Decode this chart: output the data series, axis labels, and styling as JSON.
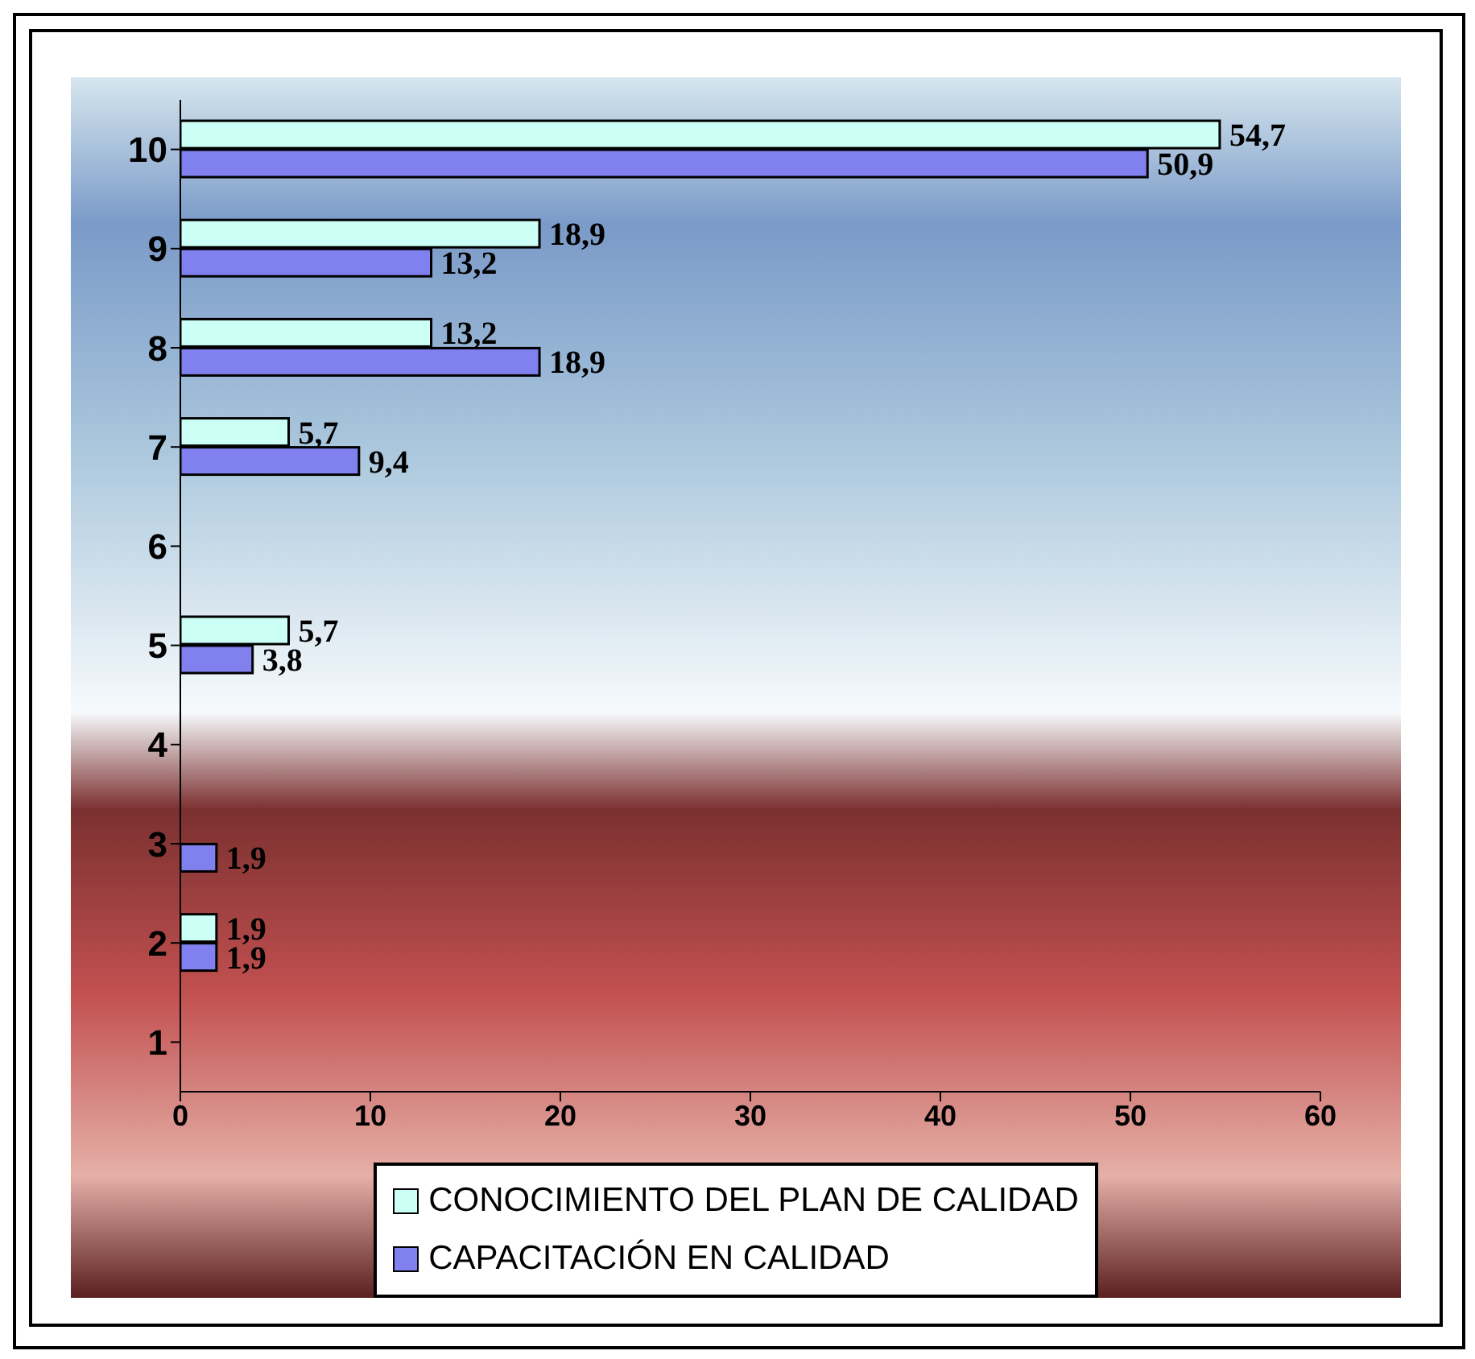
{
  "chart_data": {
    "type": "bar",
    "orientation": "horizontal",
    "categories": [
      "10",
      "9",
      "8",
      "7",
      "6",
      "5",
      "4",
      "3",
      "2",
      "1"
    ],
    "series": [
      {
        "name": "CONOCIMIENTO DEL PLAN DE CALIDAD",
        "color": "#ccfff5",
        "values": [
          54.7,
          18.9,
          13.2,
          5.7,
          null,
          5.7,
          null,
          null,
          1.9,
          null
        ],
        "value_labels": [
          "54,7",
          "18,9",
          "13,2",
          "5,7",
          null,
          "5,7",
          null,
          null,
          "1,9",
          null
        ]
      },
      {
        "name": "CAPACITACIÓN EN CALIDAD",
        "color": "#8080ee",
        "values": [
          50.9,
          13.2,
          18.9,
          9.4,
          null,
          3.8,
          null,
          1.9,
          1.9,
          null
        ],
        "value_labels": [
          "50,9",
          "13,2",
          "18,9",
          "9,4",
          null,
          "3,8",
          null,
          "1,9",
          "1,9",
          null
        ]
      }
    ],
    "xlim": [
      0,
      60
    ],
    "xticks": [
      0,
      10,
      20,
      30,
      40,
      50,
      60
    ],
    "grid": false,
    "legend": "bottom"
  }
}
